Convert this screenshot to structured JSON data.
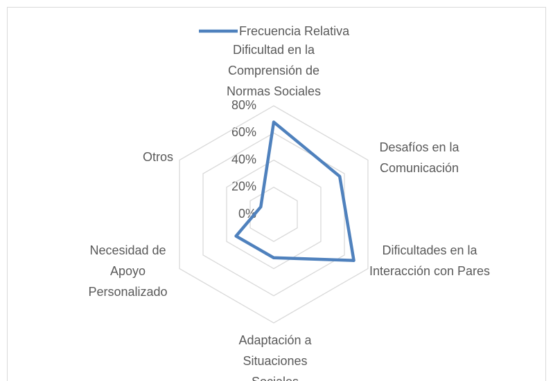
{
  "chart_data": {
    "type": "radar",
    "categories": [
      "Dificultad en la Comprensión de Normas Sociales",
      "Desafíos en la Comunicación",
      "Dificultades en la Interacción con Pares",
      "Adaptación a Situaciones Sociales",
      "Necesidad de Apoyo Personalizado",
      "Otros"
    ],
    "series": [
      {
        "name": "Frecuencia Relativa",
        "color": "#4f81bd",
        "values": [
          68,
          56,
          68,
          32,
          32,
          11
        ]
      }
    ],
    "ylim": [
      0,
      80
    ],
    "yticks": [
      {
        "value": 0,
        "label": "0%"
      },
      {
        "value": 20,
        "label": "20%"
      },
      {
        "value": 40,
        "label": "40%"
      },
      {
        "value": 60,
        "label": "60%"
      },
      {
        "value": 80,
        "label": "80%"
      }
    ],
    "grid": true,
    "legend": "top"
  }
}
